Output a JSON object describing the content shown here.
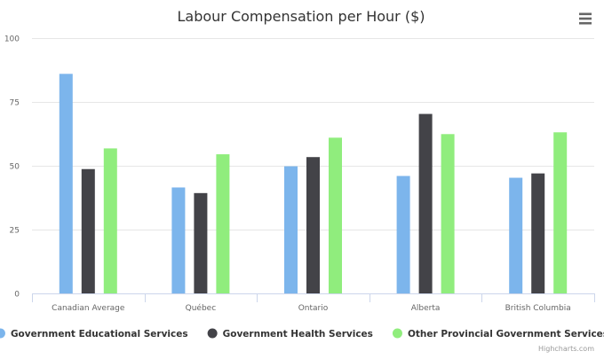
{
  "chart_data": {
    "type": "bar",
    "title": "Labour Compensation per Hour ($)",
    "categories": [
      "Canadian Average",
      "Québec",
      "Ontario",
      "Alberta",
      "British Columbia"
    ],
    "series": [
      {
        "name": "Government Educational Services",
        "color": "#7cb5ec",
        "values": [
          86,
          41.5,
          49.8,
          46,
          45.3
        ]
      },
      {
        "name": "Government Health Services",
        "color": "#434348",
        "values": [
          48.7,
          39.3,
          53.4,
          70.3,
          47
        ]
      },
      {
        "name": "Other Provincial Government Services",
        "color": "#90ed7d",
        "values": [
          56.8,
          54.5,
          61,
          62.4,
          63.1
        ]
      }
    ],
    "ylim": [
      0,
      100
    ],
    "yticks": [
      "0",
      "25",
      "50",
      "75",
      "100"
    ],
    "grid": true,
    "legend_position": "bottom"
  },
  "menu": {
    "icon": "hamburger-menu-icon"
  },
  "credits": "Highcharts.com"
}
